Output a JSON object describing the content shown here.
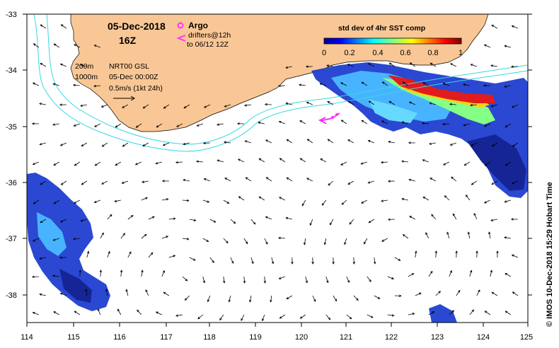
{
  "header": {
    "date": "05-Dec-2018",
    "hour": "16Z",
    "argo_label": "Argo",
    "drifters_line1": "drifters@12h",
    "drifters_line2": "to 06/12 12Z",
    "contour_200": "200m",
    "contour_1000": "1000m",
    "product": "NRT00 GSL",
    "product_time": "05-Dec 00:00Z",
    "scale_vector": "0.5m/s (1kt 24h)"
  },
  "colorbar": {
    "title": "std dev of 4hr SST comp",
    "ticks": [
      "0",
      "0.2",
      "0.4",
      "0.6",
      "0.8",
      "1"
    ],
    "range": [
      0,
      1
    ],
    "colormap": "jet"
  },
  "axes": {
    "x_ticks": [
      "114",
      "115",
      "116",
      "117",
      "118",
      "119",
      "120",
      "121",
      "122",
      "123",
      "124",
      "125"
    ],
    "y_ticks": [
      "-33",
      "-34",
      "-35",
      "-36",
      "-37",
      "-38"
    ],
    "lon_range": [
      114,
      125
    ],
    "lat_range": [
      -38.5,
      -33
    ]
  },
  "credit": "© IMOS 10-Dec-2018 15:29 Hobart Time",
  "colors": {
    "land": "#f9c795",
    "ocean": "#ffffff",
    "isobath": "#37d8e6",
    "argo_marker": "#ff33ff",
    "drifter_track": "#ff33ff",
    "current_arrows": "#000000"
  },
  "icons": {
    "argo": "argo-float-icon",
    "drifter": "drifter-track-icon",
    "scale": "velocity-scale-arrow-icon"
  }
}
